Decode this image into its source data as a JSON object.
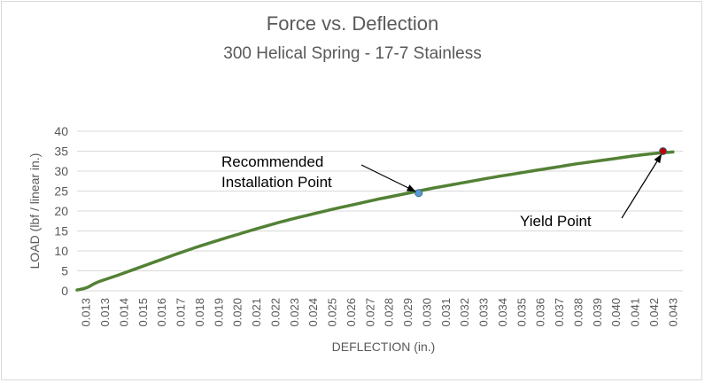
{
  "chart_data": {
    "type": "line",
    "title": "Force vs. Deflection",
    "subtitle": "300 Helical Spring - 17-7 Stainless",
    "xlabel": "DEFLECTION (in.)",
    "ylabel": "LOAD (lbf / linear in.)",
    "ylim": [
      0,
      40
    ],
    "yticks": [
      0,
      5,
      10,
      15,
      20,
      25,
      30,
      35,
      40
    ],
    "xtick_labels": [
      "0.013",
      "0.013",
      "0.014",
      "0.015",
      "0.016",
      "0.017",
      "0.018",
      "0.019",
      "0.020",
      "0.021",
      "0.022",
      "0.023",
      "0.024",
      "0.025",
      "0.026",
      "0.027",
      "0.028",
      "0.029",
      "0.030",
      "0.031",
      "0.032",
      "0.033",
      "0.034",
      "0.035",
      "0.036",
      "0.037",
      "0.038",
      "0.039",
      "0.040",
      "0.041",
      "0.042",
      "0.043"
    ],
    "grid": true,
    "series": [
      {
        "color": "#538135",
        "x": [
          0.013,
          0.0135,
          0.014,
          0.015,
          0.016,
          0.017,
          0.018,
          0.019,
          0.02,
          0.021,
          0.022,
          0.023,
          0.024,
          0.025,
          0.026,
          0.027,
          0.028,
          0.029,
          0.03,
          0.031,
          0.032,
          0.033,
          0.034,
          0.035,
          0.036,
          0.037,
          0.038,
          0.039,
          0.04,
          0.041,
          0.042,
          0.043
        ],
        "y": [
          0.2,
          0.8,
          2.1,
          3.8,
          5.6,
          7.4,
          9.2,
          10.9,
          12.5,
          14.0,
          15.5,
          16.9,
          18.2,
          19.4,
          20.6,
          21.7,
          22.8,
          23.8,
          24.8,
          25.8,
          26.7,
          27.6,
          28.5,
          29.3,
          30.1,
          30.9,
          31.7,
          32.4,
          33.1,
          33.8,
          34.4,
          34.8
        ]
      }
    ],
    "points": [
      {
        "x": 0.0302,
        "y": 24.5,
        "color": "#5b9bd5"
      },
      {
        "x": 0.0425,
        "y": 35.0,
        "color": "#c00000"
      }
    ],
    "annotations": [
      {
        "lines": [
          "Recommended",
          "Installation Point"
        ]
      },
      {
        "lines": [
          "Yield Point"
        ]
      }
    ]
  }
}
